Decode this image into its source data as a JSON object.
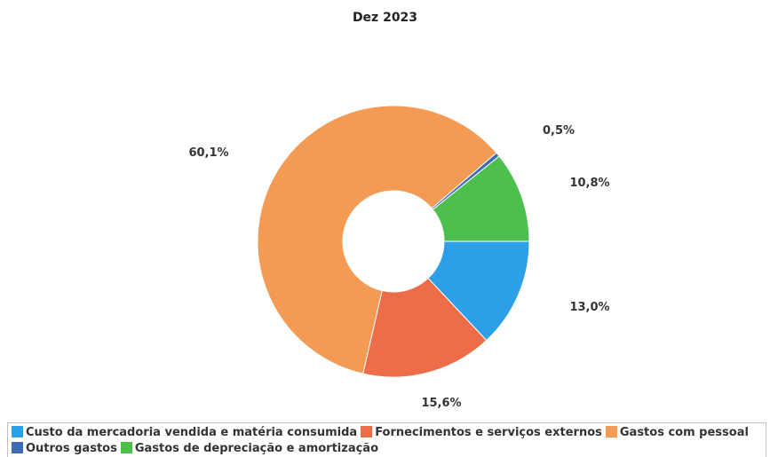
{
  "chart_data": {
    "type": "pie",
    "donut": true,
    "title": "Dez 2023",
    "slices": [
      {
        "name": "Custo da mercadoria vendida e matéria consumida",
        "value": 13.0,
        "label": "13,0%",
        "color": "#2c9fe6"
      },
      {
        "name": "Fornecimentos e serviços externos",
        "value": 15.6,
        "label": "15,6%",
        "color": "#ec6d48"
      },
      {
        "name": "Gastos com pessoal",
        "value": 60.1,
        "label": "60,1%",
        "color": "#f39b55"
      },
      {
        "name": "Outros gastos",
        "value": 0.5,
        "label": "0,5%",
        "color": "#3e6db5"
      },
      {
        "name": "Gastos de depreciação e amortização",
        "value": 10.8,
        "label": "10,8%",
        "color": "#4cbf4f"
      }
    ],
    "legend_rows": [
      [
        0,
        1,
        2
      ],
      [
        3,
        4
      ]
    ],
    "legend_position": "bottom"
  }
}
